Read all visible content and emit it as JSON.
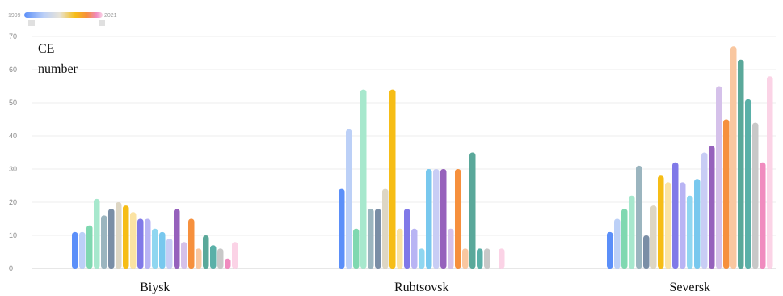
{
  "chart_data": {
    "type": "bar",
    "title": "",
    "xlabel": "",
    "ylabel": "CE number",
    "ylabel_lines": [
      "CE",
      "number"
    ],
    "ylim": [
      0,
      70
    ],
    "yticks": [
      "0",
      "10",
      "20",
      "30",
      "40",
      "50",
      "60",
      "70"
    ],
    "grid": true,
    "legend": {
      "placement": "top-left",
      "start_label": "1999",
      "end_label": "2021"
    },
    "categories": [
      "Biysk",
      "Rubtsovsk",
      "Seversk"
    ],
    "series": [
      {
        "year": 1999,
        "color": "#5b8ff9",
        "values": [
          11,
          24,
          11
        ]
      },
      {
        "year": 2000,
        "color": "#bcd0f7",
        "values": [
          11,
          42,
          15
        ]
      },
      {
        "year": 2001,
        "color": "#7fd8b0",
        "values": [
          13,
          12,
          18
        ]
      },
      {
        "year": 2002,
        "color": "#a7e8cd",
        "values": [
          21,
          54,
          22
        ]
      },
      {
        "year": 2003,
        "color": "#9bb5bf",
        "values": [
          16,
          18,
          31
        ]
      },
      {
        "year": 2004,
        "color": "#7a8ea6",
        "values": [
          18,
          18,
          10
        ]
      },
      {
        "year": 2005,
        "color": "#ddd6c4",
        "values": [
          20,
          24,
          19
        ]
      },
      {
        "year": 2006,
        "color": "#f6bd16",
        "values": [
          19,
          54,
          28
        ]
      },
      {
        "year": 2007,
        "color": "#fbe3a3",
        "values": [
          17,
          12,
          26
        ]
      },
      {
        "year": 2008,
        "color": "#8079e8",
        "values": [
          15,
          18,
          32
        ]
      },
      {
        "year": 2009,
        "color": "#b8b4f4",
        "values": [
          15,
          12,
          26
        ]
      },
      {
        "year": 2010,
        "color": "#8fd6f0",
        "values": [
          12,
          6,
          22
        ]
      },
      {
        "year": 2011,
        "color": "#78c8ee",
        "values": [
          11,
          30,
          27
        ]
      },
      {
        "year": 2012,
        "color": "#c8cdf5",
        "values": [
          9,
          30,
          35
        ]
      },
      {
        "year": 2013,
        "color": "#9661bc",
        "values": [
          18,
          30,
          37
        ]
      },
      {
        "year": 2014,
        "color": "#d5c1ea",
        "values": [
          8,
          12,
          55
        ]
      },
      {
        "year": 2015,
        "color": "#f6903d",
        "values": [
          15,
          30,
          45
        ]
      },
      {
        "year": 2016,
        "color": "#f9c7a0",
        "values": [
          6,
          6,
          67
        ]
      },
      {
        "year": 2017,
        "color": "#5aa89a",
        "values": [
          10,
          35,
          63
        ]
      },
      {
        "year": 2018,
        "color": "#5ab0a8",
        "values": [
          7,
          6,
          51
        ]
      },
      {
        "year": 2019,
        "color": "#c8c8c8",
        "values": [
          6,
          6,
          44
        ]
      },
      {
        "year": 2020,
        "color": "#f08bbf",
        "values": [
          3,
          0,
          32
        ]
      },
      {
        "year": 2021,
        "color": "#fbd3e6",
        "values": [
          8,
          6,
          58
        ]
      }
    ]
  }
}
